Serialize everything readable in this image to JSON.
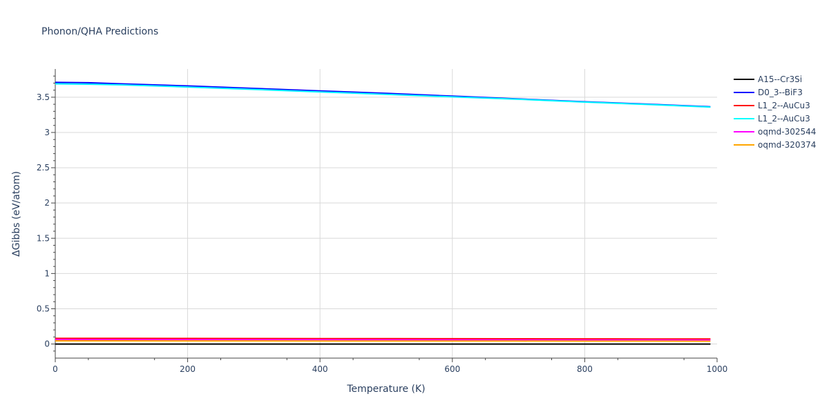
{
  "chart_data": {
    "type": "line",
    "title": "Phonon/QHA Predictions",
    "xlabel": "Temperature (K)",
    "ylabel": "ΔGibbs (eV/atom)",
    "xlim": [
      0,
      1000
    ],
    "ylim": [
      -0.2,
      3.9
    ],
    "x_ticks": [
      0,
      200,
      400,
      600,
      800,
      1000
    ],
    "x_tick_labels": [
      "0",
      "200",
      "400",
      "600",
      "800",
      "1000"
    ],
    "y_ticks": [
      0,
      0.5,
      1,
      1.5,
      2,
      2.5,
      3,
      3.5
    ],
    "y_tick_labels": [
      "0",
      "0.5",
      "1",
      "1.5",
      "2",
      "2.5",
      "3",
      "3.5"
    ],
    "grid": true,
    "legend_position": "top-right",
    "series": [
      {
        "name": "A15--Cr3Si",
        "color": "#000000",
        "x": [
          0,
          100,
          200,
          300,
          400,
          500,
          600,
          700,
          800,
          900,
          990
        ],
        "y": [
          0.0,
          0.0,
          0.0,
          0.0,
          0.0,
          0.0,
          0.0,
          0.0,
          0.0,
          0.0,
          0.0
        ]
      },
      {
        "name": "D0_3--BiF3",
        "color": "#0000ff",
        "x": [
          0,
          50,
          100,
          150,
          200,
          300,
          400,
          500,
          600,
          700,
          800,
          900,
          990
        ],
        "y": [
          3.71,
          3.705,
          3.69,
          3.675,
          3.66,
          3.625,
          3.59,
          3.555,
          3.515,
          3.475,
          3.435,
          3.4,
          3.365
        ]
      },
      {
        "name": "L1_2--AuCu3",
        "color": "#ff0000",
        "x": [
          0,
          100,
          200,
          300,
          400,
          500,
          600,
          700,
          800,
          900,
          990
        ],
        "y": [
          0.08,
          0.08,
          0.079,
          0.078,
          0.077,
          0.076,
          0.075,
          0.074,
          0.073,
          0.072,
          0.071
        ]
      },
      {
        "name": "L1_2--AuCu3",
        "color": "#00ffff",
        "x": [
          0,
          50,
          100,
          150,
          200,
          300,
          400,
          500,
          600,
          700,
          800,
          900,
          990
        ],
        "y": [
          3.69,
          3.685,
          3.675,
          3.66,
          3.645,
          3.61,
          3.575,
          3.54,
          3.505,
          3.47,
          3.43,
          3.395,
          3.36
        ]
      },
      {
        "name": "oqmd-302544",
        "color": "#ff00ff",
        "x": [
          0,
          100,
          200,
          300,
          400,
          500,
          600,
          700,
          800,
          900,
          990
        ],
        "y": [
          0.065,
          0.064,
          0.063,
          0.062,
          0.061,
          0.06,
          0.059,
          0.058,
          0.057,
          0.056,
          0.055
        ]
      },
      {
        "name": "oqmd-320374",
        "color": "#ffa500",
        "x": [
          0,
          100,
          200,
          300,
          400,
          500,
          600,
          700,
          800,
          900,
          990
        ],
        "y": [
          0.045,
          0.045,
          0.044,
          0.044,
          0.043,
          0.043,
          0.042,
          0.042,
          0.041,
          0.041,
          0.04
        ]
      }
    ]
  }
}
